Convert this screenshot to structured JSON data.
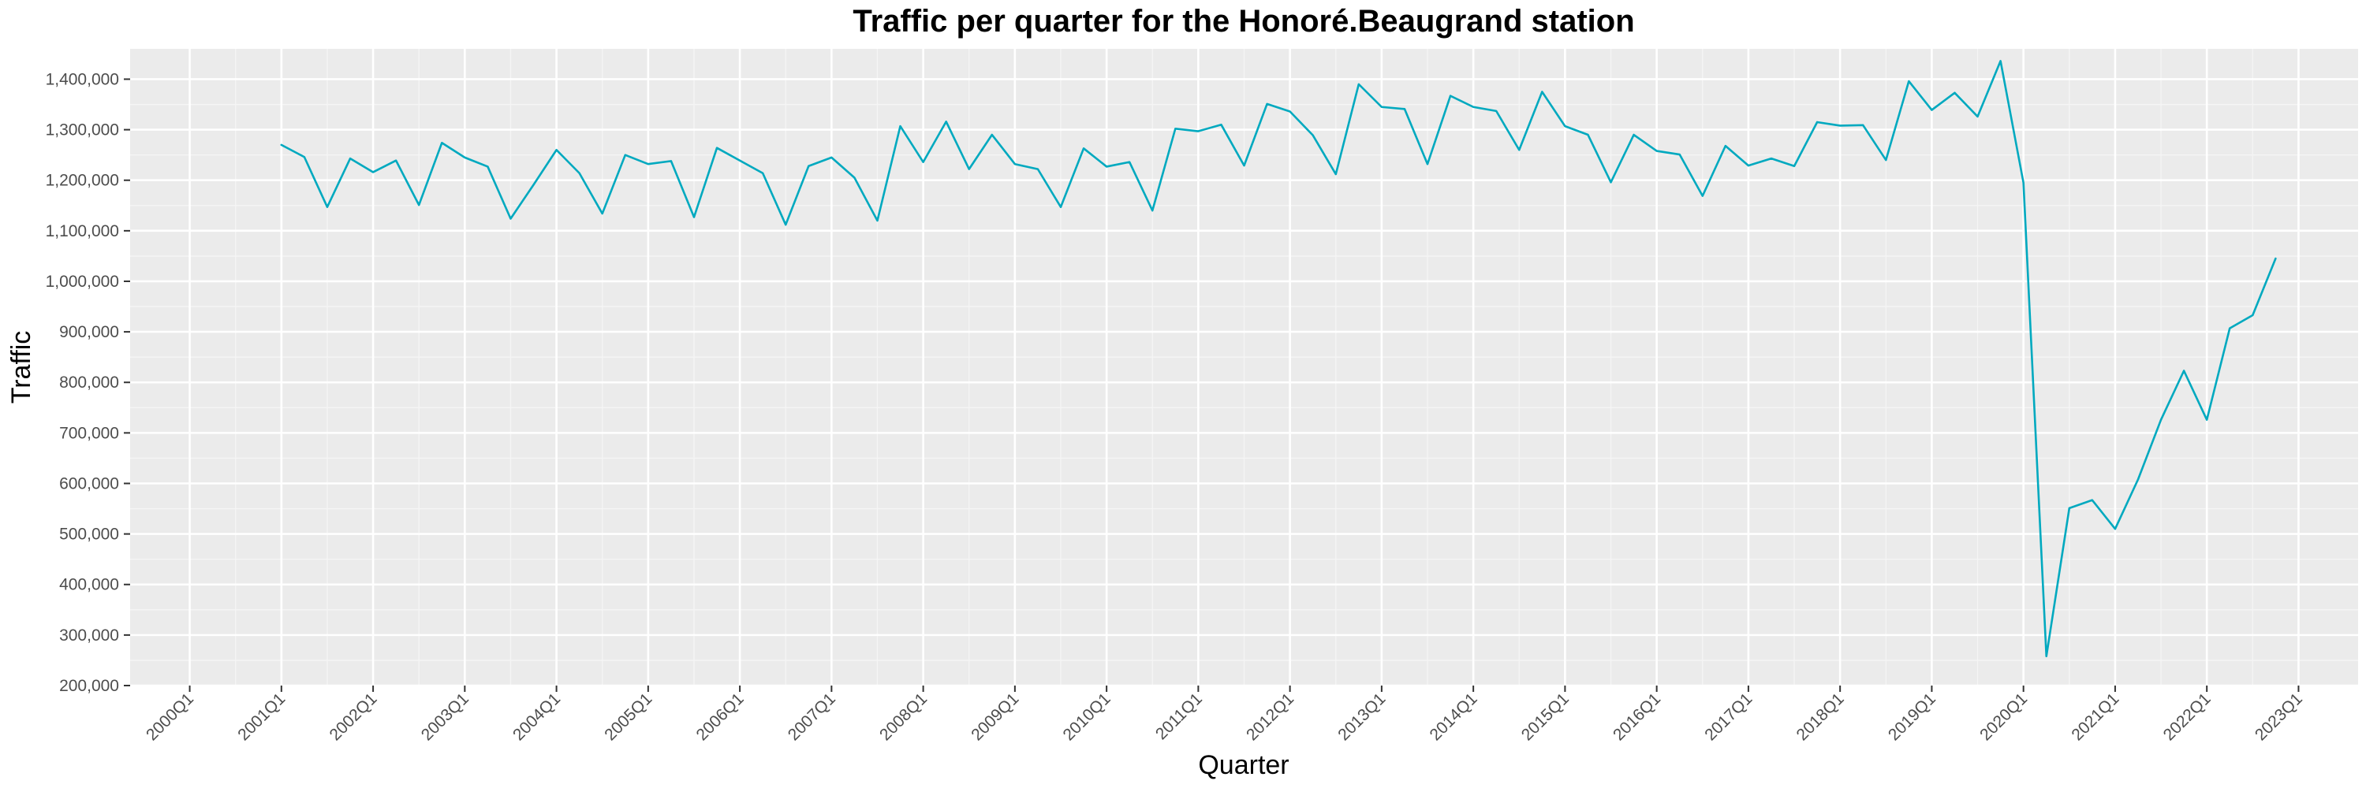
{
  "chart_data": {
    "type": "line",
    "title": "Traffic per quarter for the Honoré.Beaugrand station",
    "xlabel": "Quarter",
    "ylabel": "Traffic",
    "ylim": [
      200000,
      1460000
    ],
    "y_ticks": [
      200000,
      300000,
      400000,
      500000,
      600000,
      700000,
      800000,
      900000,
      1000000,
      1100000,
      1200000,
      1300000,
      1400000
    ],
    "y_tick_labels": [
      "200,000",
      "300,000",
      "400,000",
      "500,000",
      "600,000",
      "700,000",
      "800,000",
      "900,000",
      "1,000,000",
      "1,100,000",
      "1,200,000",
      "1,300,000",
      "1,400,000"
    ],
    "x_tick_labels": [
      "2000Q1",
      "2001Q1",
      "2002Q1",
      "2003Q1",
      "2004Q1",
      "2005Q1",
      "2006Q1",
      "2007Q1",
      "2008Q1",
      "2009Q1",
      "2010Q1",
      "2011Q1",
      "2012Q1",
      "2013Q1",
      "2014Q1",
      "2015Q1",
      "2016Q1",
      "2017Q1",
      "2018Q1",
      "2019Q1",
      "2020Q1",
      "2021Q1",
      "2022Q1",
      "2023Q1"
    ],
    "grid": true,
    "line_color": "#00A9BF",
    "panel_color": "#EBEBEB",
    "x": [
      "2001Q1",
      "2001Q2",
      "2001Q3",
      "2001Q4",
      "2002Q1",
      "2002Q2",
      "2002Q3",
      "2002Q4",
      "2003Q1",
      "2003Q2",
      "2003Q3",
      "2003Q4",
      "2004Q1",
      "2004Q2",
      "2004Q3",
      "2004Q4",
      "2005Q1",
      "2005Q2",
      "2005Q3",
      "2005Q4",
      "2006Q1",
      "2006Q2",
      "2006Q3",
      "2006Q4",
      "2007Q1",
      "2007Q2",
      "2007Q3",
      "2007Q4",
      "2008Q1",
      "2008Q2",
      "2008Q3",
      "2008Q4",
      "2009Q1",
      "2009Q2",
      "2009Q3",
      "2009Q4",
      "2010Q1",
      "2010Q2",
      "2010Q3",
      "2010Q4",
      "2011Q1",
      "2011Q2",
      "2011Q3",
      "2011Q4",
      "2012Q1",
      "2012Q2",
      "2012Q3",
      "2012Q4",
      "2013Q1",
      "2013Q2",
      "2013Q3",
      "2013Q4",
      "2014Q1",
      "2014Q2",
      "2014Q3",
      "2014Q4",
      "2015Q1",
      "2015Q2",
      "2015Q3",
      "2015Q4",
      "2016Q1",
      "2016Q2",
      "2016Q3",
      "2016Q4",
      "2017Q1",
      "2017Q2",
      "2017Q3",
      "2017Q4",
      "2018Q1",
      "2018Q2",
      "2018Q3",
      "2018Q4",
      "2019Q1",
      "2019Q2",
      "2019Q3",
      "2019Q4",
      "2020Q1",
      "2020Q2",
      "2020Q3",
      "2020Q4",
      "2021Q1",
      "2021Q2",
      "2021Q3",
      "2021Q4",
      "2022Q1",
      "2022Q2",
      "2022Q3",
      "2022Q4"
    ],
    "series": [
      {
        "values": [
          1270000,
          1246000,
          1147000,
          1243000,
          1216000,
          1239000,
          1151000,
          1274000,
          1245000,
          1227000,
          1124000,
          1191000,
          1260000,
          1214000,
          1134000,
          1250000,
          1232000,
          1238000,
          1127000,
          1264000,
          1239000,
          1214000,
          1112000,
          1228000,
          1245000,
          1205000,
          1120000,
          1307000,
          1236000,
          1316000,
          1222000,
          1290000,
          1232000,
          1222000,
          1147000,
          1263000,
          1227000,
          1236000,
          1140000,
          1302000,
          1297000,
          1310000,
          1229000,
          1351000,
          1336000,
          1289000,
          1212000,
          1390000,
          1345000,
          1341000,
          1232000,
          1367000,
          1345000,
          1337000,
          1260000,
          1375000,
          1307000,
          1290000,
          1196000,
          1290000,
          1258000,
          1251000,
          1169000,
          1268000,
          1229000,
          1243000,
          1228000,
          1315000,
          1308000,
          1309000,
          1240000,
          1396000,
          1339000,
          1373000,
          1326000,
          1436000,
          1195000,
          258000,
          551000,
          567000,
          510000,
          608000,
          726000,
          823000,
          726000,
          907000,
          933000,
          1045000
        ]
      }
    ]
  }
}
